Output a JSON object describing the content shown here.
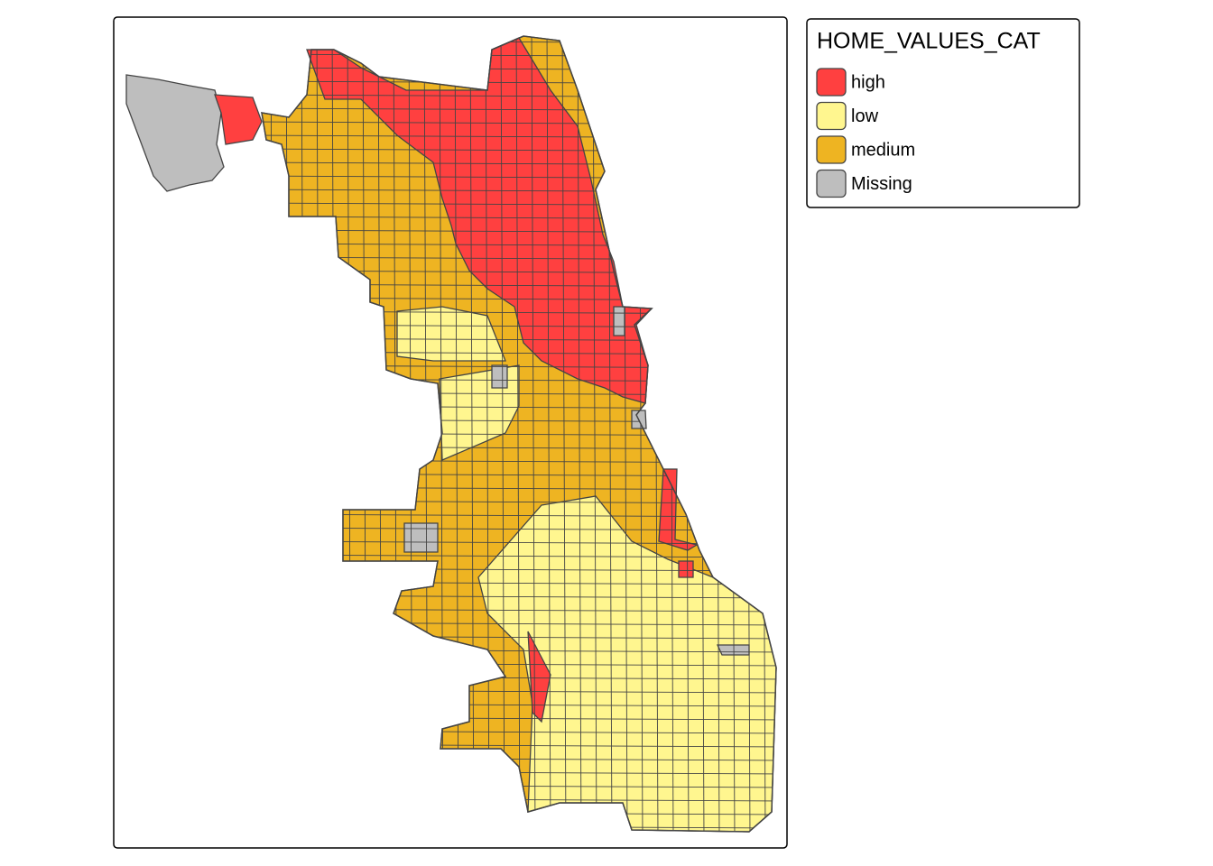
{
  "legend": {
    "title": "HOME_VALUES_CAT",
    "entries": [
      {
        "label": "high",
        "color": "#FF4040"
      },
      {
        "label": "low",
        "color": "#FFF68F"
      },
      {
        "label": "medium",
        "color": "#EEB422"
      },
      {
        "label": "Missing",
        "color": "#BEBEBE"
      }
    ]
  }
}
